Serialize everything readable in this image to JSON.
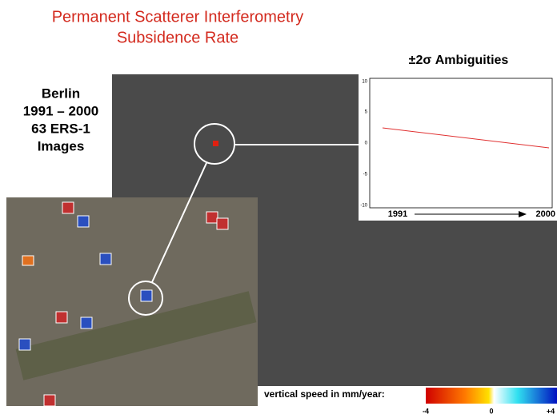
{
  "title": {
    "line1": "Permanent Scatterer Interferometry",
    "line2": "Subsidence Rate"
  },
  "caption": {
    "lines": [
      "Berlin",
      "1991 – 2000",
      "63 ERS-1",
      "Images"
    ]
  },
  "inset_plot": {
    "title": "±2σ Ambiguities",
    "y_tick_labels": [
      "10",
      "5",
      "0",
      "-5",
      "-10"
    ],
    "x_start": "1991",
    "x_end": "2000"
  },
  "colorbar": {
    "label": "vertical speed in mm/year:",
    "tick_labels": [
      "-4",
      "0",
      "+4"
    ]
  }
}
